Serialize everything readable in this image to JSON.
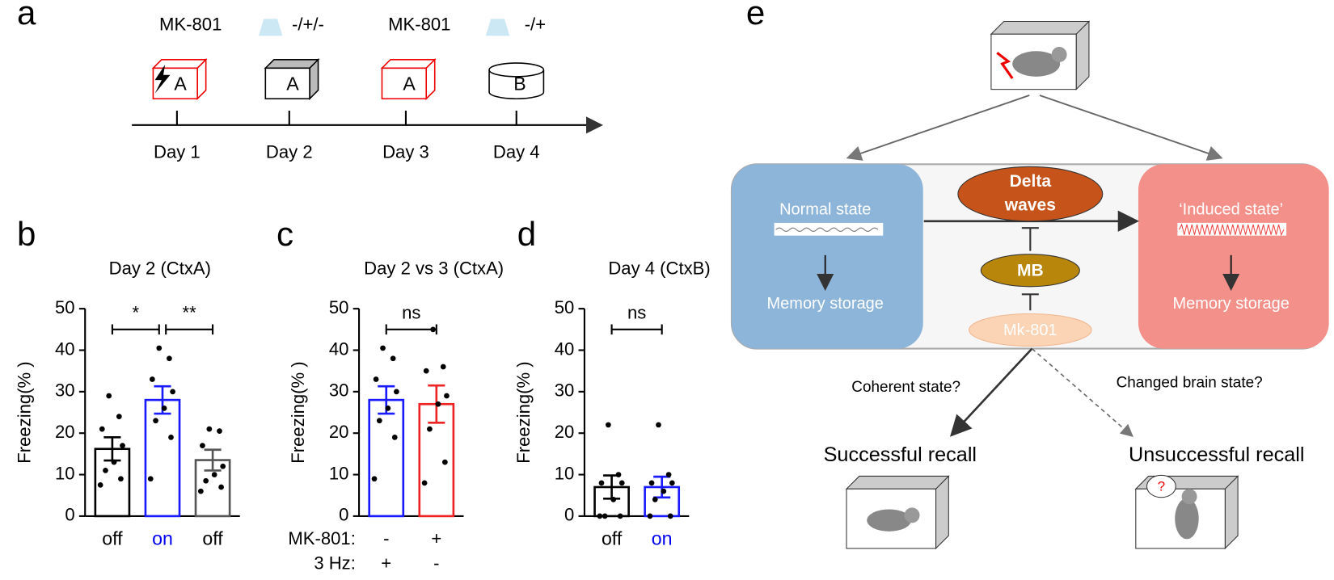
{
  "panel_labels": [
    "a",
    "b",
    "c",
    "d",
    "e"
  ],
  "timeline": {
    "top_labels": [
      "MK-801",
      "-/+/-",
      "MK-801",
      "-/+"
    ],
    "contexts": [
      "A",
      "A",
      "A",
      "B"
    ],
    "days": [
      "Day 1",
      "Day 2",
      "Day 3",
      "Day 4"
    ]
  },
  "chart_data": [
    {
      "type": "bar",
      "title": "Day 2 (CtxA)",
      "ylabel": "Freezing(% )",
      "categories": [
        "off",
        "on",
        "off"
      ],
      "category_colors": [
        "#000000",
        "#0000ee",
        "#000000"
      ],
      "values": [
        16.2,
        28,
        13.5
      ],
      "errors": [
        2.8,
        3.3,
        2.5
      ],
      "colors": [
        "#000000",
        "#1a1aff",
        "#555555"
      ],
      "points": [
        [
          29,
          24,
          21,
          17,
          13,
          11,
          9,
          7.5
        ],
        [
          40.5,
          38,
          33,
          30,
          26,
          23,
          19,
          9
        ],
        [
          21,
          20.5,
          17,
          12,
          10,
          8.5,
          7,
          6
        ]
      ],
      "comparisons": [
        {
          "pair": [
            0,
            1
          ],
          "label": "*"
        },
        {
          "pair": [
            1,
            2
          ],
          "label": "**"
        }
      ],
      "ylim": [
        0,
        50
      ],
      "yticks": [
        0,
        10,
        20,
        30,
        40,
        50
      ]
    },
    {
      "type": "bar",
      "title": "Day 2 vs 3 (CtxA)",
      "ylabel": "Freezing(% )",
      "categories": [
        null,
        null
      ],
      "x_rows": [
        {
          "label": "MK-801:",
          "values": [
            "-",
            "+"
          ]
        },
        {
          "label": "3 Hz:",
          "values": [
            "+",
            "-"
          ]
        }
      ],
      "values": [
        28,
        27
      ],
      "errors": [
        3.3,
        4.5
      ],
      "colors": [
        "#1a1aff",
        "#ee2222"
      ],
      "points": [
        [
          40.5,
          38,
          33,
          30,
          26,
          23,
          19,
          9
        ],
        [
          45,
          36,
          35,
          29,
          27,
          21,
          13,
          8
        ]
      ],
      "comparisons": [
        {
          "pair": [
            0,
            1
          ],
          "label": "ns"
        }
      ],
      "ylim": [
        0,
        50
      ],
      "yticks": [
        0,
        10,
        20,
        30,
        40,
        50
      ]
    },
    {
      "type": "bar",
      "title": "Day 4 (CtxB)",
      "ylabel": "Freezing(% )",
      "categories": [
        "off",
        "on"
      ],
      "category_colors": [
        "#000000",
        "#0000ee"
      ],
      "values": [
        7,
        7
      ],
      "errors": [
        2.8,
        2.5
      ],
      "colors": [
        "#000000",
        "#1a1aff"
      ],
      "points": [
        [
          22,
          10,
          8,
          8,
          4,
          0,
          0,
          0
        ],
        [
          22,
          10,
          8,
          8,
          6,
          4,
          0,
          0
        ]
      ],
      "comparisons": [
        {
          "pair": [
            0,
            1
          ],
          "label": "ns"
        }
      ],
      "ylim": [
        0,
        50
      ],
      "yticks": [
        0,
        10,
        20,
        30,
        40,
        50
      ]
    }
  ],
  "diagram": {
    "delta": [
      "Delta",
      "waves"
    ],
    "mb": "MB",
    "drug": "Mk-801",
    "normal_state": "Normal state",
    "induced_state": "‘Induced state’",
    "storage_left": "Memory storage",
    "storage_right": "Memory storage",
    "coherent": "Coherent state?",
    "changed": "Changed brain state?",
    "success": "Successful recall",
    "failure": "Unsuccessful recall"
  }
}
